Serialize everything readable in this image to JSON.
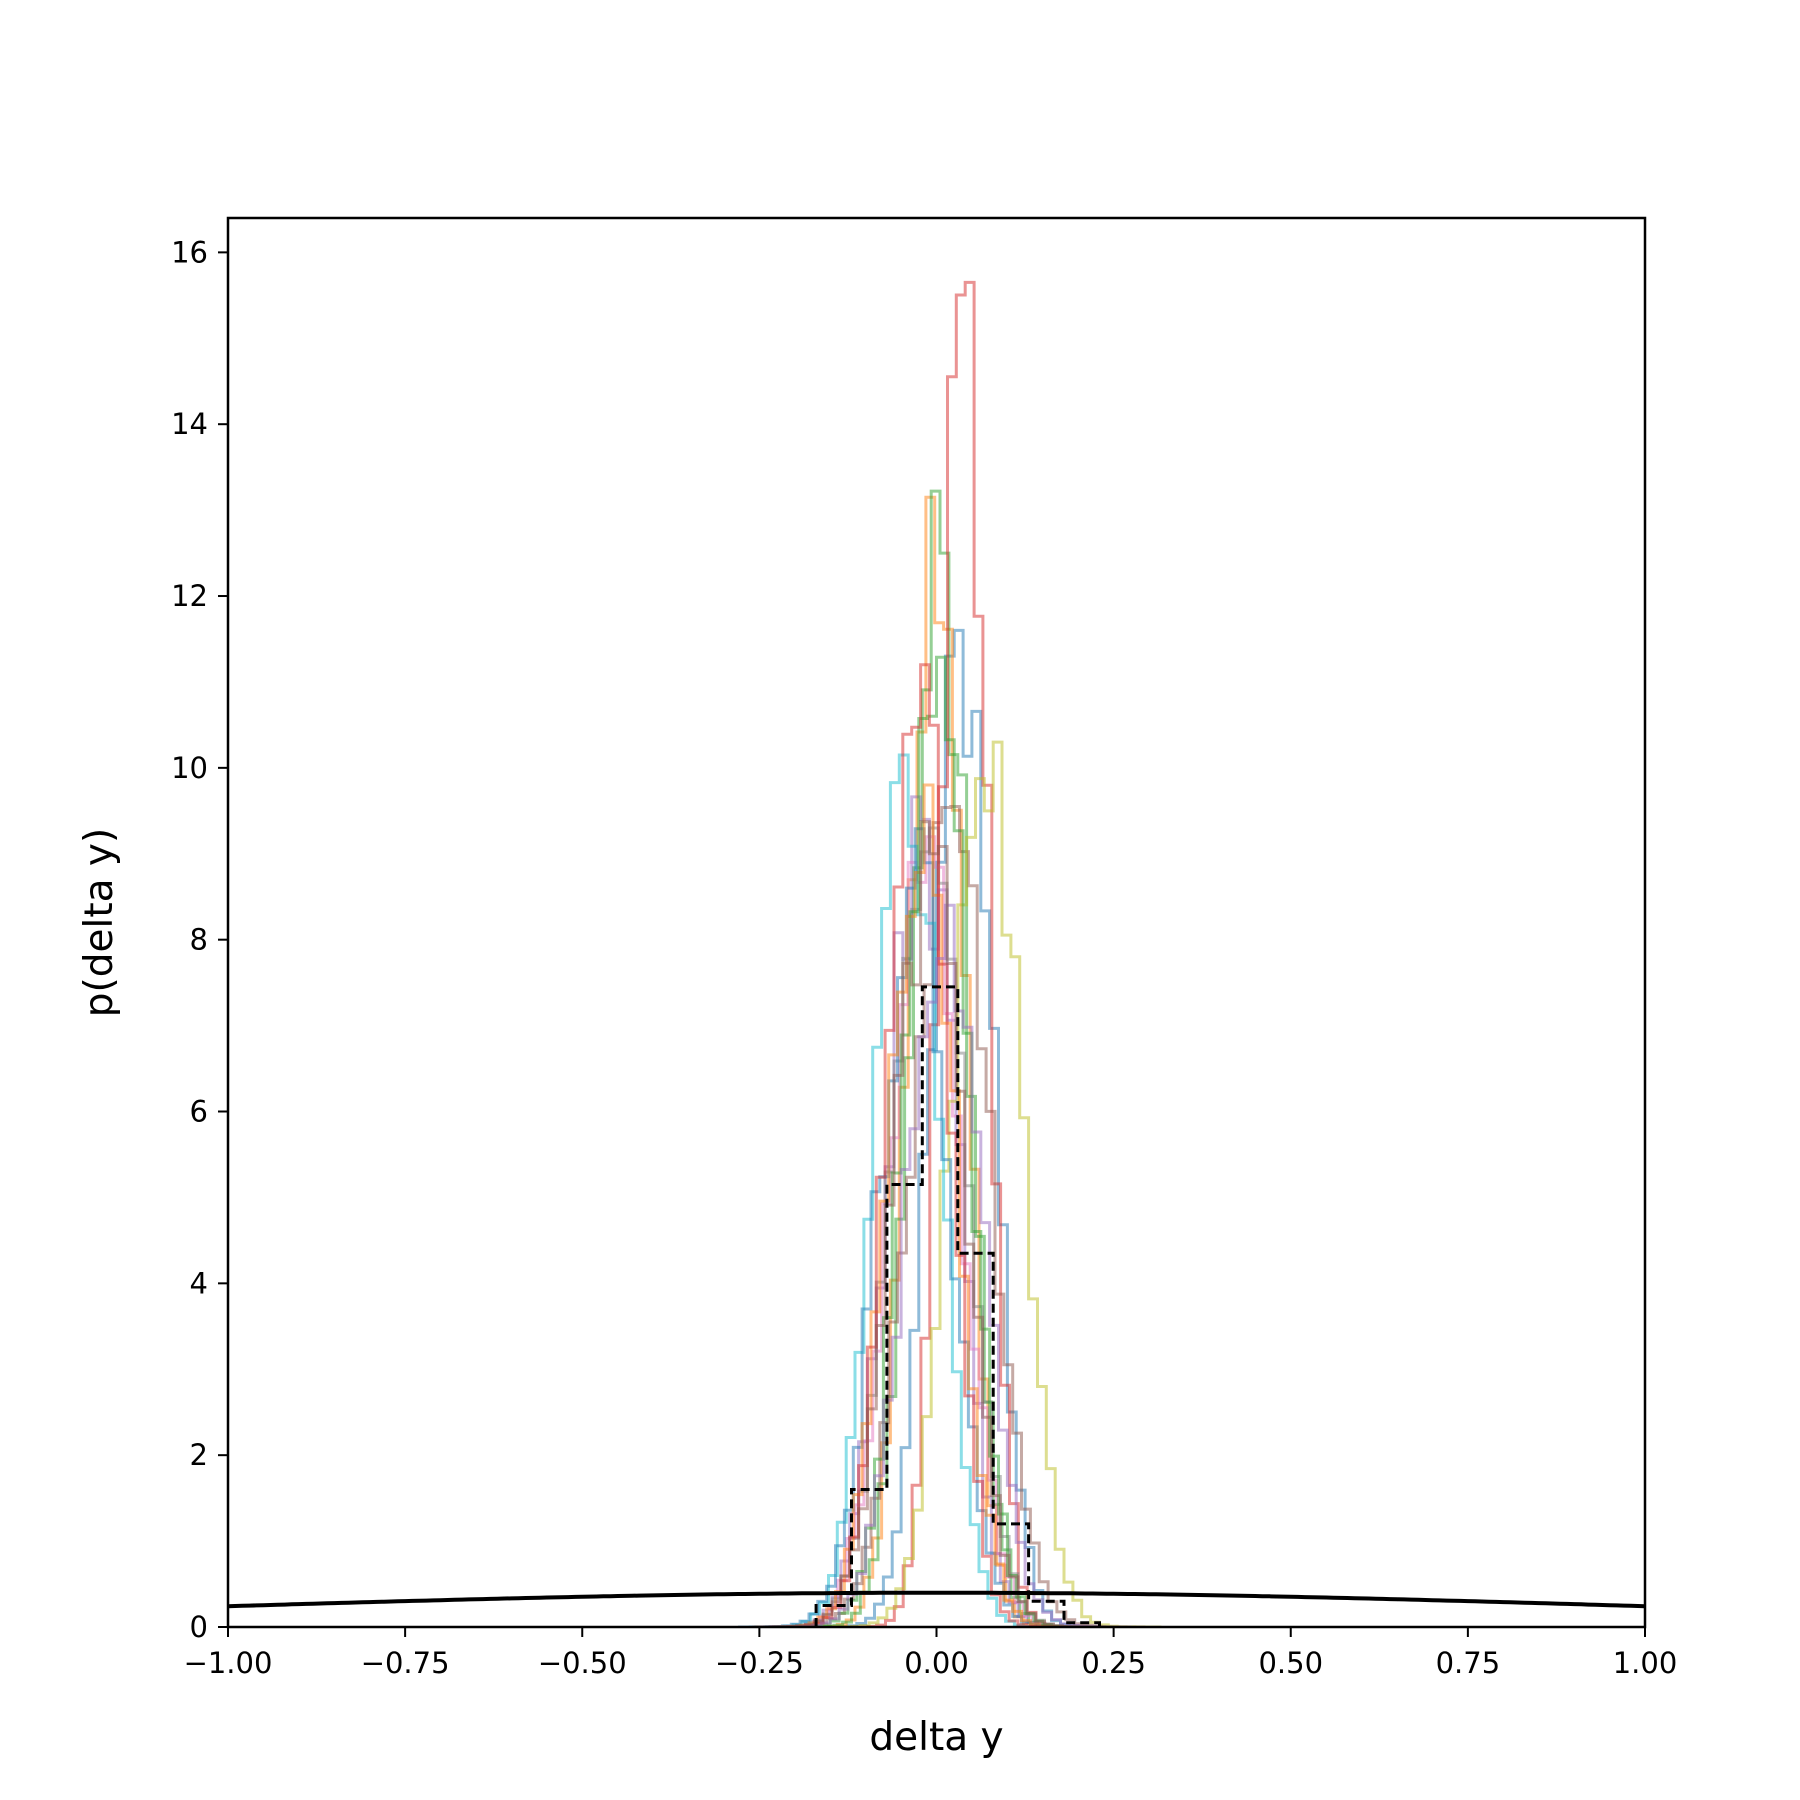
{
  "chart_data": {
    "type": "step",
    "title": "",
    "xlabel": "delta y",
    "ylabel": "p(delta y)",
    "xlim": [
      -1.0,
      1.0
    ],
    "ylim": [
      0,
      16.4
    ],
    "grid": false,
    "legend": "none",
    "x_ticks": [
      -1.0,
      -0.75,
      -0.5,
      -0.25,
      0.0,
      0.25,
      0.5,
      0.75,
      1.0
    ],
    "x_tick_labels": [
      "−1.00",
      "−0.75",
      "−0.50",
      "−0.25",
      "0.00",
      "0.25",
      "0.50",
      "0.75",
      "1.00"
    ],
    "y_ticks": [
      0,
      2,
      4,
      6,
      8,
      10,
      12,
      14,
      16
    ],
    "y_tick_labels": [
      "0",
      "2",
      "4",
      "6",
      "8",
      "10",
      "12",
      "14",
      "16"
    ],
    "prior_curve": {
      "kind": "normal-pdf",
      "mean": 0.0,
      "std": 1.0,
      "color": "#000000",
      "style": "solid"
    },
    "combined_histogram": {
      "color": "#000000",
      "style": "dashed",
      "bins": [
        -0.17,
        -0.12,
        -0.07,
        -0.02,
        0.03,
        0.08,
        0.13,
        0.18,
        0.23
      ],
      "values": [
        0.25,
        1.6,
        5.15,
        7.45,
        4.35,
        1.2,
        0.3,
        0.05
      ]
    },
    "sample_histograms": [
      {
        "color": "#1f77b4",
        "center": 0.035,
        "peak": 11.6,
        "width": 0.042
      },
      {
        "color": "#ff7f0e",
        "center": 0.0,
        "peak": 13.15,
        "width": 0.038
      },
      {
        "color": "#2ca02c",
        "center": 0.005,
        "peak": 12.5,
        "width": 0.04
      },
      {
        "color": "#d62728",
        "center": 0.038,
        "peak": 15.65,
        "width": 0.032
      },
      {
        "color": "#9467bd",
        "center": -0.02,
        "peak": 9.4,
        "width": 0.048
      },
      {
        "color": "#8c564b",
        "center": 0.02,
        "peak": 9.55,
        "width": 0.055
      },
      {
        "color": "#e377c2",
        "center": -0.015,
        "peak": 8.9,
        "width": 0.05
      },
      {
        "color": "#7f7f7f",
        "center": -0.01,
        "peak": 9.3,
        "width": 0.05
      },
      {
        "color": "#bcbd22",
        "center": 0.07,
        "peak": 10.3,
        "width": 0.048
      },
      {
        "color": "#17becf",
        "center": -0.04,
        "peak": 10.15,
        "width": 0.045
      },
      {
        "color": "#1f77b4",
        "center": -0.03,
        "peak": 8.6,
        "width": 0.05
      },
      {
        "color": "#ff7f0e",
        "center": -0.02,
        "peak": 9.8,
        "width": 0.047
      },
      {
        "color": "#2ca02c",
        "center": 0.0,
        "peak": 10.6,
        "width": 0.045
      },
      {
        "color": "#d62728",
        "center": -0.025,
        "peak": 11.2,
        "width": 0.042
      },
      {
        "color": "#9467bd",
        "center": 0.01,
        "peak": 8.4,
        "width": 0.052
      },
      {
        "color": "#8c564b",
        "center": -0.01,
        "peak": 9.0,
        "width": 0.05
      }
    ]
  }
}
